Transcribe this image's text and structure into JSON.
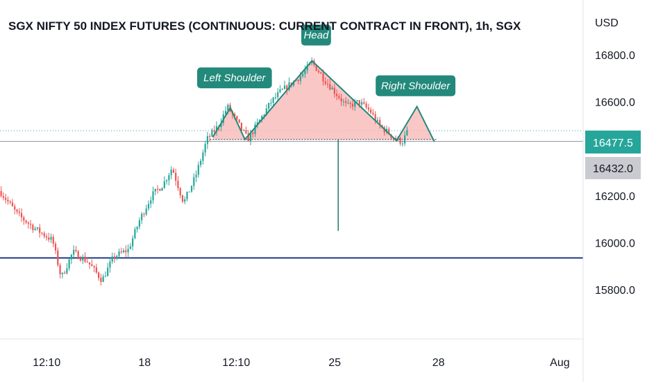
{
  "header": {
    "title": "SGX NIFTY 50 INDEX FUTURES (CONTINUOUS: CURRENT CONTRACT IN FRONT), 1h, SGX"
  },
  "colors": {
    "up": "#26a69a",
    "down": "#ef5350",
    "pattern_fill": "#f8b4b4",
    "pattern_line": "#22897b",
    "support_line": "#1e3a8a",
    "price_tag_bg": "#26a69a",
    "neckline_tag_bg": "#c9cbd1"
  },
  "chart_data": {
    "type": "candlestick",
    "title": "SGX NIFTY 50 INDEX FUTURES (CONTINUOUS: CURRENT CONTRACT IN FRONT), 1h, SGX",
    "currency": "USD",
    "y_ticks": [
      "16800.0",
      "16600.0",
      "16200.0",
      "16000.0",
      "15800.0"
    ],
    "ylim": [
      15590,
      17010
    ],
    "x_ticks": [
      {
        "label": "12:10",
        "pos": 0.08
      },
      {
        "label": "18",
        "pos": 0.248
      },
      {
        "label": "12:10",
        "pos": 0.405
      },
      {
        "label": "25",
        "pos": 0.574
      },
      {
        "label": "28",
        "pos": 0.752
      },
      {
        "label": "Aug",
        "pos": 0.96
      }
    ],
    "last_price": {
      "value": 16477.5,
      "label": "16477.5"
    },
    "neckline_price": {
      "value": 16432.0,
      "label": "16432.0"
    },
    "support_level": 15935,
    "measured_move_target": 16050,
    "price_path": [
      [
        0,
        16220
      ],
      [
        0.03,
        16120
      ],
      [
        0.06,
        16060
      ],
      [
        0.09,
        16010
      ],
      [
        0.105,
        15850
      ],
      [
        0.125,
        15960
      ],
      [
        0.15,
        15920
      ],
      [
        0.175,
        15840
      ],
      [
        0.195,
        15940
      ],
      [
        0.22,
        15970
      ],
      [
        0.24,
        16100
      ],
      [
        0.26,
        16200
      ],
      [
        0.28,
        16250
      ],
      [
        0.295,
        16320
      ],
      [
        0.315,
        16170
      ],
      [
        0.335,
        16280
      ],
      [
        0.355,
        16440
      ],
      [
        0.375,
        16500
      ],
      [
        0.39,
        16580
      ],
      [
        0.41,
        16500
      ],
      [
        0.425,
        16440
      ],
      [
        0.445,
        16520
      ],
      [
        0.465,
        16600
      ],
      [
        0.48,
        16640
      ],
      [
        0.5,
        16680
      ],
      [
        0.52,
        16720
      ],
      [
        0.535,
        16770
      ],
      [
        0.555,
        16700
      ],
      [
        0.575,
        16640
      ],
      [
        0.595,
        16580
      ],
      [
        0.615,
        16600
      ],
      [
        0.635,
        16560
      ],
      [
        0.65,
        16500
      ],
      [
        0.665,
        16470
      ],
      [
        0.68,
        16440
      ],
      [
        0.69,
        16430
      ],
      [
        0.7,
        16478
      ]
    ],
    "pattern": {
      "labels": {
        "left_shoulder": "Left Shoulder",
        "head": "Head",
        "right_shoulder": "Right Shoulder"
      },
      "points": [
        {
          "pos": 0.365,
          "price": 16450
        },
        {
          "pos": 0.395,
          "price": 16575
        },
        {
          "pos": 0.42,
          "price": 16440
        },
        {
          "pos": 0.535,
          "price": 16775
        },
        {
          "pos": 0.68,
          "price": 16435
        },
        {
          "pos": 0.715,
          "price": 16580
        },
        {
          "pos": 0.745,
          "price": 16430
        }
      ],
      "neckline": 16440
    }
  }
}
